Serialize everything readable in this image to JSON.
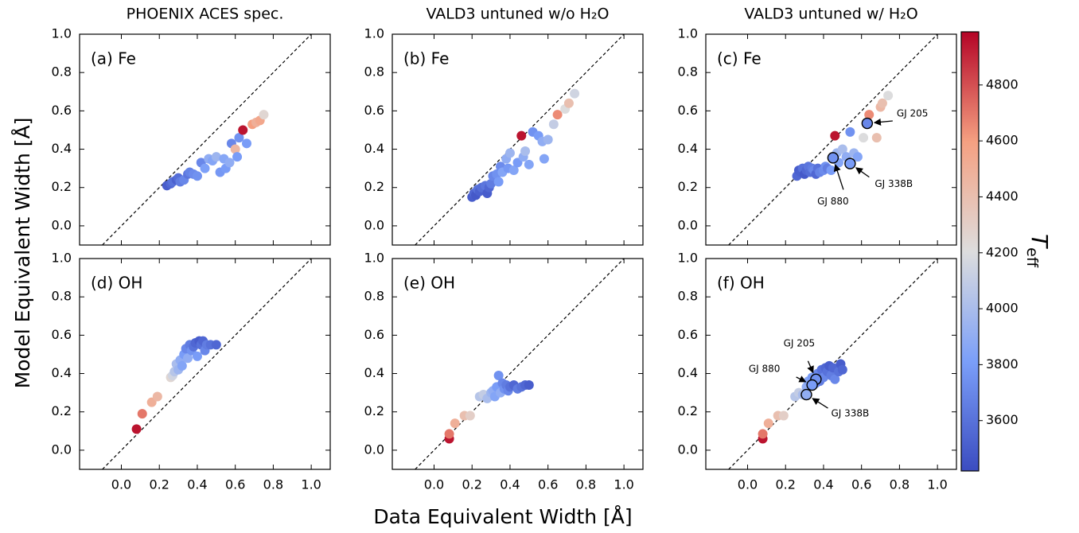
{
  "figure": {
    "xlabel": "Data Equivalent Width [Å]",
    "ylabel": "Model Equivalent Width [Å]"
  },
  "chart_data": [
    {
      "type": "scatter",
      "title": "PHOENIX ACES spec.",
      "label": "(a) Fe",
      "x": [
        0.24,
        0.26,
        0.27,
        0.29,
        0.3,
        0.31,
        0.33,
        0.35,
        0.36,
        0.38,
        0.4,
        0.42,
        0.44,
        0.46,
        0.48,
        0.5,
        0.52,
        0.54,
        0.55,
        0.57,
        0.58,
        0.6,
        0.61,
        0.62,
        0.64,
        0.66,
        0.69,
        0.71,
        0.73,
        0.75
      ],
      "y": [
        0.21,
        0.22,
        0.23,
        0.24,
        0.25,
        0.23,
        0.24,
        0.27,
        0.28,
        0.27,
        0.26,
        0.33,
        0.3,
        0.35,
        0.34,
        0.36,
        0.28,
        0.35,
        0.3,
        0.33,
        0.43,
        0.4,
        0.36,
        0.46,
        0.5,
        0.43,
        0.53,
        0.54,
        0.55,
        0.58
      ],
      "c": [
        3500,
        3550,
        3600,
        3520,
        3580,
        3650,
        3700,
        3620,
        3680,
        3720,
        3750,
        3700,
        3820,
        3900,
        3850,
        3950,
        3780,
        3860,
        3800,
        3900,
        3700,
        4450,
        3800,
        3750,
        4950,
        3800,
        4600,
        4500,
        4550,
        4250
      ],
      "xlim": [
        -0.22,
        1.1
      ],
      "ylim": [
        -0.1,
        1.0
      ],
      "xticks": [
        0,
        0.2,
        0.4,
        0.6,
        0.8,
        1
      ],
      "yticks": [
        {
          "value": 0,
          "label": "0.0"
        },
        {
          "value": 0.2,
          "label": "0.2"
        },
        {
          "value": 0.4,
          "label": "0.4"
        },
        {
          "value": 0.6,
          "label": "0.6"
        },
        {
          "value": 0.8,
          "label": "0.8"
        },
        {
          "value": 1,
          "label": "1.0"
        }
      ],
      "diagonal": true
    },
    {
      "type": "scatter",
      "title": "VALD3 untuned w/o H₂O",
      "label": "(b) Fe",
      "x": [
        0.2,
        0.21,
        0.22,
        0.23,
        0.24,
        0.25,
        0.27,
        0.28,
        0.29,
        0.3,
        0.31,
        0.33,
        0.34,
        0.35,
        0.36,
        0.38,
        0.39,
        0.4,
        0.42,
        0.44,
        0.46,
        0.47,
        0.48,
        0.5,
        0.52,
        0.55,
        0.57,
        0.58,
        0.6,
        0.63,
        0.65,
        0.69,
        0.71,
        0.74
      ],
      "y": [
        0.15,
        0.17,
        0.16,
        0.19,
        0.18,
        0.2,
        0.21,
        0.17,
        0.2,
        0.22,
        0.26,
        0.27,
        0.23,
        0.31,
        0.28,
        0.35,
        0.3,
        0.38,
        0.29,
        0.33,
        0.47,
        0.36,
        0.39,
        0.32,
        0.49,
        0.47,
        0.44,
        0.35,
        0.45,
        0.53,
        0.58,
        0.61,
        0.64,
        0.69
      ],
      "c": [
        3500,
        3550,
        3480,
        3600,
        3520,
        3580,
        3620,
        3500,
        3550,
        3650,
        3700,
        3750,
        3800,
        3720,
        3850,
        3900,
        3780,
        3950,
        3850,
        3800,
        4950,
        3900,
        4000,
        3850,
        3750,
        3800,
        3900,
        3850,
        3950,
        4100,
        4650,
        4200,
        4400,
        4150
      ],
      "xlim": [
        -0.22,
        1.1
      ],
      "ylim": [
        -0.1,
        1.0
      ],
      "xticks": [
        0,
        0.2,
        0.4,
        0.6,
        0.8,
        1
      ],
      "yticks": [
        {
          "value": 0,
          "label": "0.0"
        },
        {
          "value": 0.2,
          "label": "0.2"
        },
        {
          "value": 0.4,
          "label": "0.4"
        },
        {
          "value": 0.6,
          "label": "0.6"
        },
        {
          "value": 0.8,
          "label": "0.8"
        },
        {
          "value": 1,
          "label": "1.0"
        }
      ],
      "diagonal": true
    },
    {
      "type": "scatter",
      "title": "VALD3 untuned w/ H₂O",
      "label": "(c) Fe",
      "x": [
        0.26,
        0.27,
        0.28,
        0.29,
        0.3,
        0.31,
        0.32,
        0.33,
        0.34,
        0.35,
        0.36,
        0.37,
        0.38,
        0.4,
        0.41,
        0.42,
        0.44,
        0.46,
        0.47,
        0.48,
        0.5,
        0.52,
        0.54,
        0.56,
        0.58,
        0.61,
        0.64,
        0.68,
        0.7,
        0.71,
        0.74
      ],
      "y": [
        0.26,
        0.29,
        0.28,
        0.3,
        0.27,
        0.29,
        0.31,
        0.28,
        0.3,
        0.29,
        0.27,
        0.3,
        0.28,
        0.29,
        0.31,
        0.3,
        0.29,
        0.47,
        0.38,
        0.33,
        0.4,
        0.36,
        0.49,
        0.38,
        0.36,
        0.46,
        0.58,
        0.46,
        0.62,
        0.64,
        0.68
      ],
      "c": [
        3550,
        3500,
        3520,
        3600,
        3480,
        3550,
        3620,
        3580,
        3650,
        3700,
        3550,
        3600,
        3680,
        3720,
        3750,
        3650,
        3800,
        4950,
        3950,
        3850,
        4000,
        3900,
        3750,
        3950,
        3850,
        4200,
        4650,
        4400,
        4450,
        4400,
        4200
      ],
      "xlim": [
        -0.22,
        1.1
      ],
      "ylim": [
        -0.1,
        1.0
      ],
      "xticks": [
        0,
        0.2,
        0.4,
        0.6,
        0.8,
        1
      ],
      "yticks": [
        {
          "value": 0,
          "label": "0.0"
        },
        {
          "value": 0.2,
          "label": "0.2"
        },
        {
          "value": 0.4,
          "label": "0.4"
        },
        {
          "value": 0.6,
          "label": "0.6"
        },
        {
          "value": 0.8,
          "label": "0.8"
        },
        {
          "value": 1,
          "label": "1.0"
        }
      ],
      "diagonal": true,
      "annotations": [
        {
          "text": "GJ 205",
          "x": 0.63,
          "y": 0.535,
          "c": 3700
        },
        {
          "text": "GJ 880",
          "x": 0.45,
          "y": 0.355,
          "c": 3750
        },
        {
          "text": "GJ 338B",
          "x": 0.54,
          "y": 0.325,
          "c": 3800
        }
      ]
    },
    {
      "type": "scatter",
      "label": "(d) OH",
      "x": [
        0.08,
        0.11,
        0.16,
        0.19,
        0.26,
        0.27,
        0.28,
        0.29,
        0.3,
        0.31,
        0.32,
        0.33,
        0.34,
        0.35,
        0.36,
        0.37,
        0.38,
        0.39,
        0.4,
        0.41,
        0.42,
        0.43,
        0.44,
        0.45,
        0.47,
        0.5
      ],
      "y": [
        0.11,
        0.19,
        0.25,
        0.28,
        0.38,
        0.39,
        0.41,
        0.45,
        0.42,
        0.47,
        0.44,
        0.5,
        0.53,
        0.48,
        0.55,
        0.52,
        0.54,
        0.56,
        0.49,
        0.57,
        0.55,
        0.57,
        0.52,
        0.55,
        0.55,
        0.55
      ],
      "c": [
        4950,
        4700,
        4500,
        4450,
        4250,
        4150,
        4050,
        4000,
        3950,
        3900,
        3850,
        3800,
        3700,
        3900,
        3650,
        3750,
        3600,
        3550,
        3800,
        3500,
        3600,
        3550,
        3700,
        3650,
        3600,
        3550
      ],
      "xlim": [
        -0.22,
        1.1
      ],
      "ylim": [
        -0.1,
        1.0
      ],
      "xticks": [
        {
          "value": 0,
          "label": "0.0"
        },
        {
          "value": 0.2,
          "label": "0.2"
        },
        {
          "value": 0.4,
          "label": "0.4"
        },
        {
          "value": 0.6,
          "label": "0.6"
        },
        {
          "value": 0.8,
          "label": "0.8"
        },
        {
          "value": 1,
          "label": "1.0"
        }
      ],
      "yticks": [
        {
          "value": 0,
          "label": "0.0"
        },
        {
          "value": 0.2,
          "label": "0.2"
        },
        {
          "value": 0.4,
          "label": "0.4"
        },
        {
          "value": 0.6,
          "label": "0.6"
        },
        {
          "value": 0.8,
          "label": "0.8"
        },
        {
          "value": 1,
          "label": "1.0"
        }
      ],
      "diagonal": true
    },
    {
      "type": "scatter",
      "label": "(e) OH",
      "x": [
        0.08,
        0.08,
        0.11,
        0.16,
        0.19,
        0.24,
        0.26,
        0.28,
        0.3,
        0.31,
        0.32,
        0.33,
        0.34,
        0.35,
        0.36,
        0.37,
        0.38,
        0.39,
        0.4,
        0.42,
        0.44,
        0.46,
        0.48,
        0.5
      ],
      "y": [
        0.06,
        0.085,
        0.14,
        0.18,
        0.18,
        0.28,
        0.29,
        0.27,
        0.3,
        0.31,
        0.28,
        0.33,
        0.39,
        0.3,
        0.35,
        0.32,
        0.34,
        0.31,
        0.33,
        0.34,
        0.32,
        0.33,
        0.34,
        0.34
      ],
      "c": [
        4950,
        4700,
        4500,
        4400,
        4300,
        4050,
        4100,
        4000,
        3950,
        3900,
        3850,
        3800,
        3750,
        3900,
        3700,
        3750,
        3650,
        3700,
        3600,
        3550,
        3650,
        3600,
        3550,
        3500
      ],
      "xlim": [
        -0.22,
        1.1
      ],
      "ylim": [
        -0.1,
        1.0
      ],
      "xticks": [
        {
          "value": 0,
          "label": "0.0"
        },
        {
          "value": 0.2,
          "label": "0.2"
        },
        {
          "value": 0.4,
          "label": "0.4"
        },
        {
          "value": 0.6,
          "label": "0.6"
        },
        {
          "value": 0.8,
          "label": "0.8"
        },
        {
          "value": 1,
          "label": "1.0"
        }
      ],
      "yticks": [
        {
          "value": 0,
          "label": "0.0"
        },
        {
          "value": 0.2,
          "label": "0.2"
        },
        {
          "value": 0.4,
          "label": "0.4"
        },
        {
          "value": 0.6,
          "label": "0.6"
        },
        {
          "value": 0.8,
          "label": "0.8"
        },
        {
          "value": 1,
          "label": "1.0"
        }
      ],
      "diagonal": true
    },
    {
      "type": "scatter",
      "label": "(f) OH",
      "x": [
        0.08,
        0.08,
        0.11,
        0.16,
        0.19,
        0.25,
        0.27,
        0.29,
        0.31,
        0.32,
        0.34,
        0.36,
        0.37,
        0.38,
        0.39,
        0.4,
        0.41,
        0.42,
        0.43,
        0.44,
        0.45,
        0.46,
        0.48,
        0.49,
        0.5
      ],
      "y": [
        0.06,
        0.085,
        0.14,
        0.18,
        0.18,
        0.28,
        0.3,
        0.29,
        0.33,
        0.36,
        0.38,
        0.35,
        0.4,
        0.36,
        0.42,
        0.38,
        0.43,
        0.41,
        0.44,
        0.39,
        0.43,
        0.37,
        0.41,
        0.45,
        0.42
      ],
      "c": [
        4950,
        4700,
        4500,
        4400,
        4300,
        4050,
        4100,
        4000,
        3900,
        3850,
        3800,
        3750,
        3700,
        3650,
        3600,
        3700,
        3550,
        3600,
        3500,
        3650,
        3550,
        3700,
        3600,
        3500,
        3550
      ],
      "xlim": [
        -0.22,
        1.1
      ],
      "ylim": [
        -0.1,
        1.0
      ],
      "xticks": [
        {
          "value": 0,
          "label": "0.0"
        },
        {
          "value": 0.2,
          "label": "0.2"
        },
        {
          "value": 0.4,
          "label": "0.4"
        },
        {
          "value": 0.6,
          "label": "0.6"
        },
        {
          "value": 0.8,
          "label": "0.8"
        },
        {
          "value": 1,
          "label": "1.0"
        }
      ],
      "yticks": [
        {
          "value": 0,
          "label": "0.0"
        },
        {
          "value": 0.2,
          "label": "0.2"
        },
        {
          "value": 0.4,
          "label": "0.4"
        },
        {
          "value": 0.6,
          "label": "0.6"
        },
        {
          "value": 0.8,
          "label": "0.8"
        },
        {
          "value": 1,
          "label": "1.0"
        }
      ],
      "diagonal": true,
      "annotations": [
        {
          "text": "GJ 205",
          "x": 0.36,
          "y": 0.37,
          "c": 3750
        },
        {
          "text": "GJ 880",
          "x": 0.34,
          "y": 0.34,
          "c": 3800
        },
        {
          "text": "GJ 338B",
          "x": 0.31,
          "y": 0.29,
          "c": 3900
        }
      ]
    },
    {
      "type": "colorbar",
      "label": "T",
      "label_subscript": "eff",
      "colormap": "coolwarm",
      "clim": [
        3420,
        4990
      ],
      "ticks": [
        3600,
        3800,
        4000,
        4200,
        4400,
        4600,
        4800
      ]
    }
  ]
}
